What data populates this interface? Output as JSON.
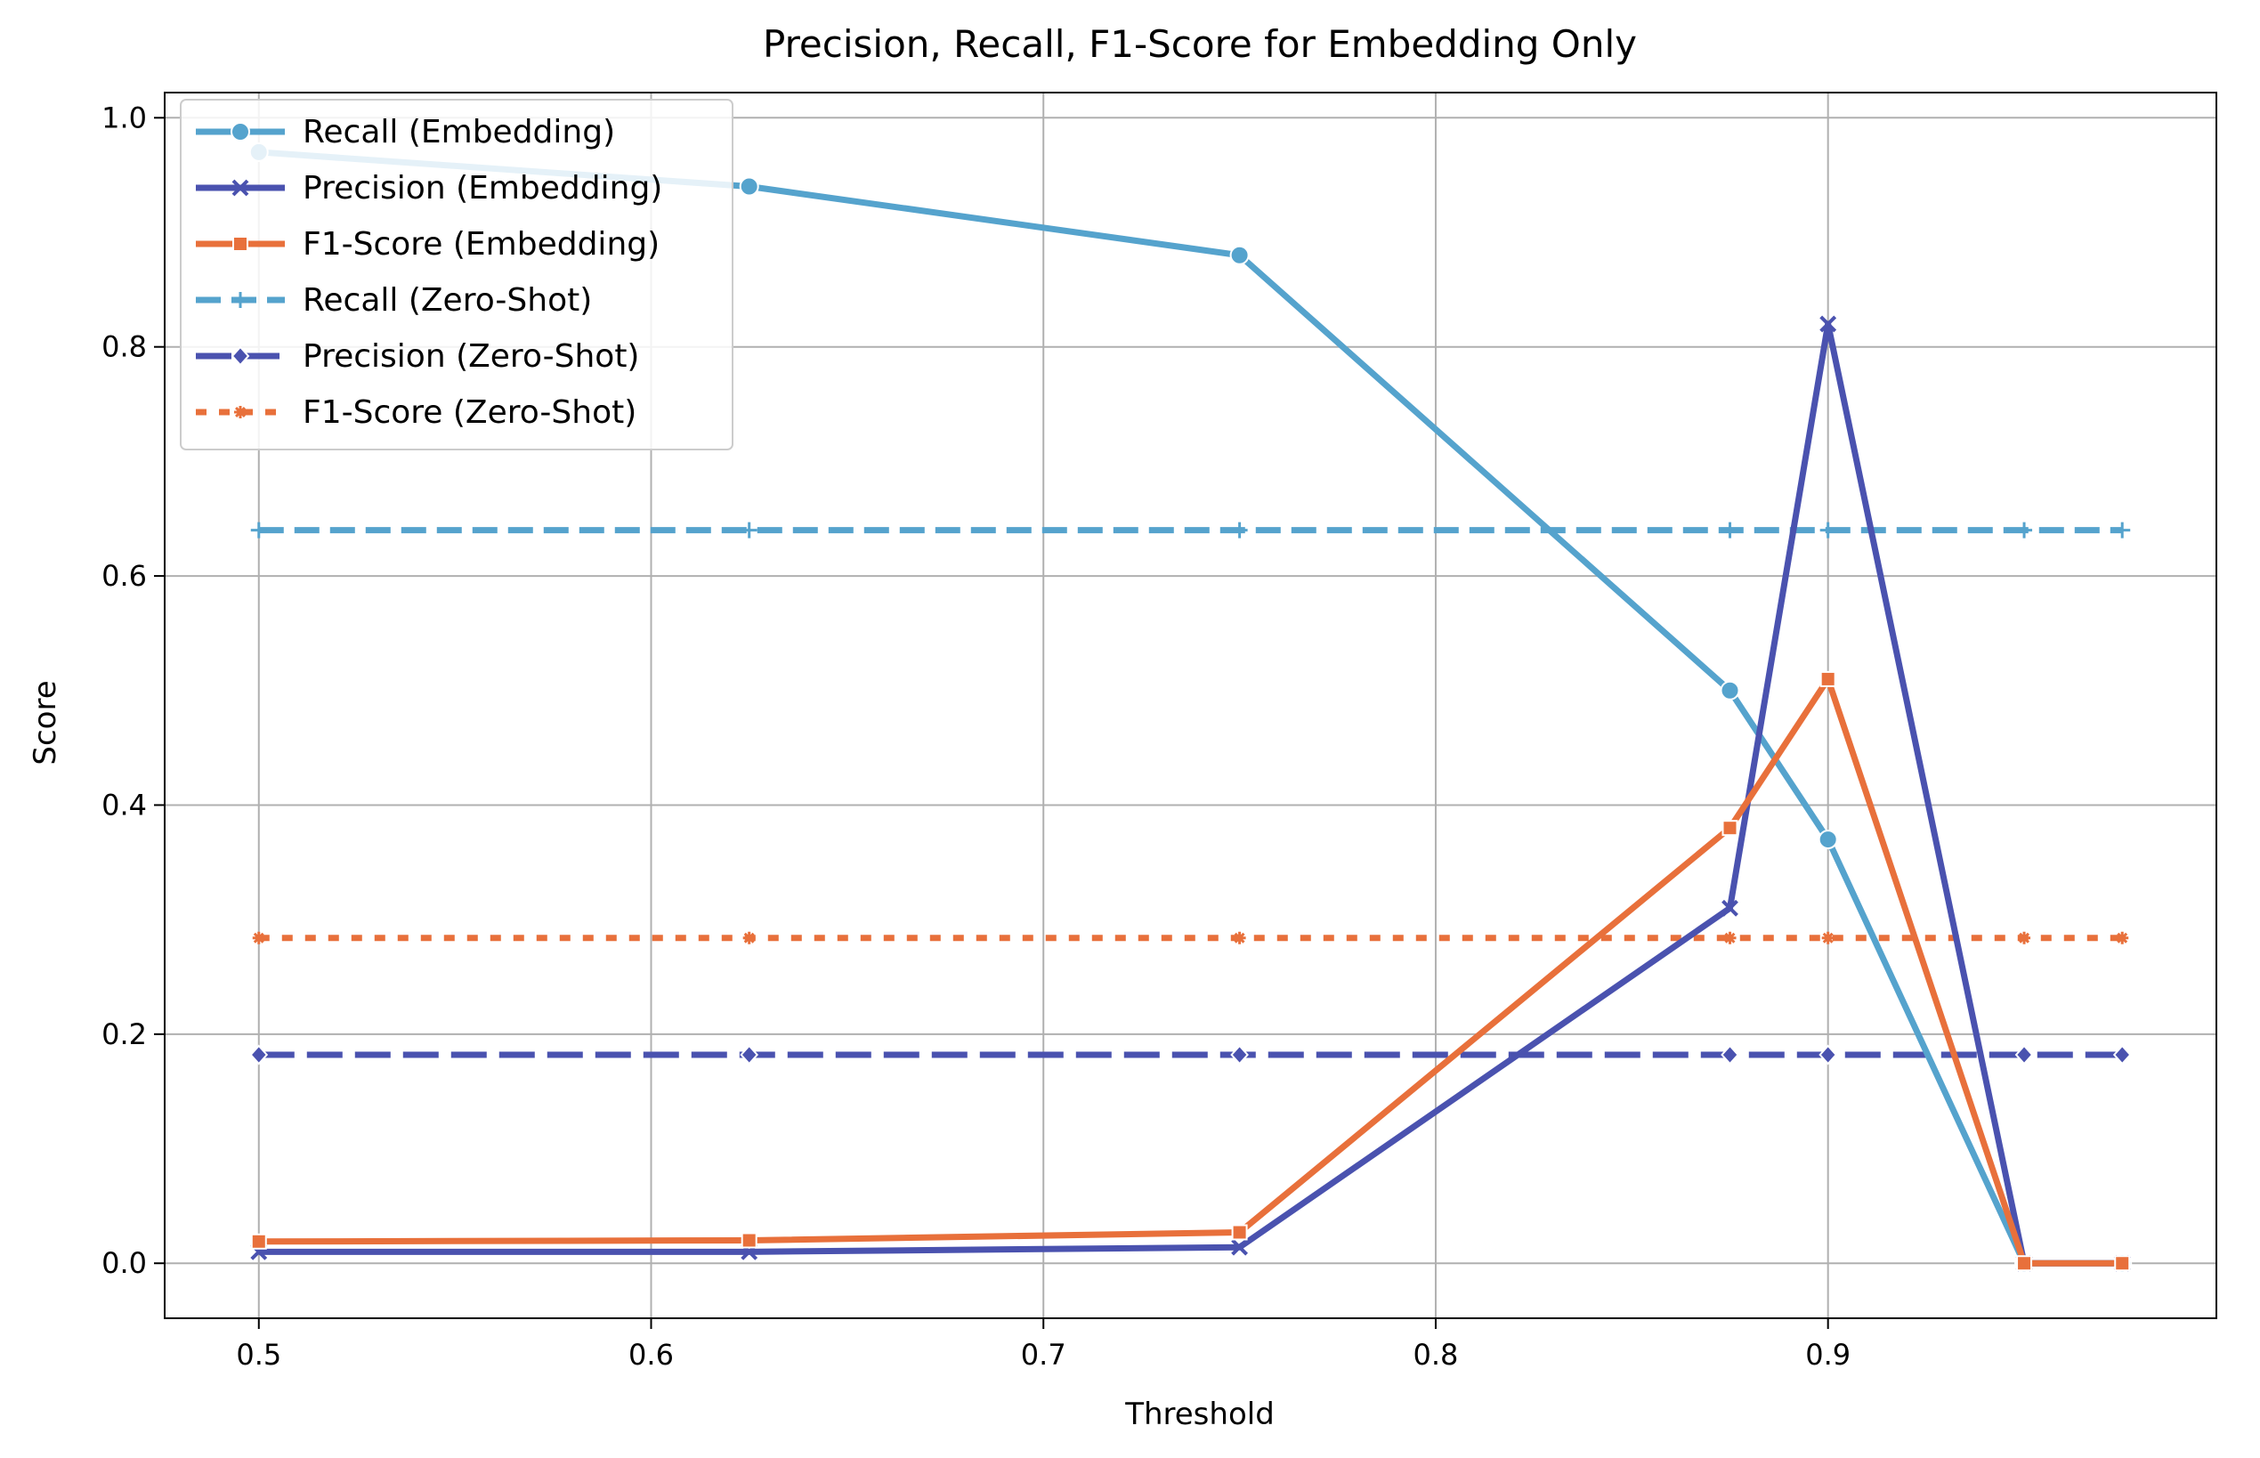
{
  "chart_data": {
    "type": "line",
    "title": "Precision, Recall, F1-Score for Embedding Only",
    "xlabel": "Threshold",
    "ylabel": "Score",
    "xlim": [
      0.476,
      0.999
    ],
    "ylim": [
      -0.048,
      1.022
    ],
    "xticks": [
      "0.5",
      "0.6",
      "0.7",
      "0.8",
      "0.9"
    ],
    "yticks": [
      "0.0",
      "0.2",
      "0.4",
      "0.6",
      "0.8",
      "1.0"
    ],
    "grid": true,
    "legend_position": "upper-left",
    "x": [
      0.5,
      0.625,
      0.75,
      0.875,
      0.9,
      0.95,
      0.975
    ],
    "series": [
      {
        "name": "Recall (Embedding)",
        "color": "#55a3cd",
        "style": "solid",
        "marker": "circle",
        "values": [
          0.97,
          0.94,
          0.88,
          0.5,
          0.37,
          0.0,
          0.0
        ]
      },
      {
        "name": "Precision (Embedding)",
        "color": "#4a52af",
        "style": "solid",
        "marker": "x",
        "values": [
          0.01,
          0.01,
          0.014,
          0.31,
          0.82,
          0.0,
          0.0
        ]
      },
      {
        "name": "F1-Score (Embedding)",
        "color": "#e8703b",
        "style": "solid",
        "marker": "square",
        "values": [
          0.019,
          0.02,
          0.027,
          0.38,
          0.51,
          0.0,
          0.0
        ]
      },
      {
        "name": "Recall (Zero-Shot)",
        "color": "#55a3cd",
        "style": "dashed",
        "marker": "plus",
        "values": [
          0.64,
          0.64,
          0.64,
          0.64,
          0.64,
          0.64,
          0.64
        ]
      },
      {
        "name": "Precision (Zero-Shot)",
        "color": "#4a52af",
        "style": "longdash",
        "marker": "diamond",
        "values": [
          0.182,
          0.182,
          0.182,
          0.182,
          0.182,
          0.182,
          0.182
        ]
      },
      {
        "name": "F1-Score (Zero-Shot)",
        "color": "#e8703b",
        "style": "dotted",
        "marker": "star",
        "values": [
          0.284,
          0.284,
          0.284,
          0.284,
          0.284,
          0.284,
          0.284
        ]
      }
    ]
  }
}
